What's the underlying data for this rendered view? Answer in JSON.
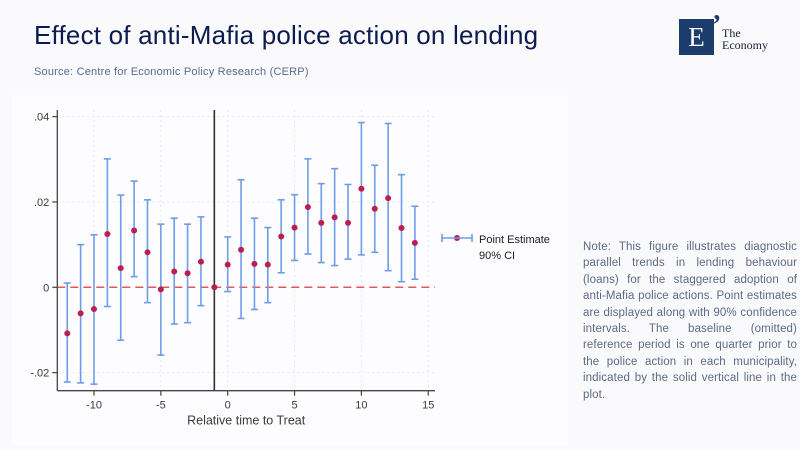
{
  "slide": {
    "title": "Effect of anti-Mafia police action on lending",
    "source": "Source: Centre for Economic Policy Research (CERP)",
    "note": "Note: This figure illustrates diagnostic parallel trends in lending behaviour (loans) for the staggered adoption of anti-Mafia police actions. Point estimates are displayed along with 90% confidence intervals. The baseline (omitted) reference period is one quarter prior to the police action in each municipality, indicated by the solid vertical line in the plot."
  },
  "logo": {
    "letter": "E",
    "mark": "’",
    "name_line1": "The",
    "name_line2": "Economy"
  },
  "colors": {
    "point": "#bb1f4f",
    "ci": "#6f9ce8",
    "zero_line": "#e25757",
    "ref_line": "#2f2f2f",
    "axis": "#444444",
    "grid": "#e6e8f2",
    "title": "#0d1c4e",
    "muted_text": "#5b6a82",
    "logo_box": "#1d3c6e"
  },
  "chart_data": {
    "type": "scatter",
    "subtype": "event-study point estimates with error bars",
    "title": "",
    "xlabel": "Relative time to Treat",
    "ylabel": "",
    "xlim": [
      -13,
      15.6
    ],
    "ylim": [
      -0.0245,
      0.0415
    ],
    "grid": true,
    "legend_position": "right-inside",
    "legend": [
      "Point Estimate",
      "90% CI"
    ],
    "reference_line_x": -1,
    "zero_line_y": 0,
    "x_ticks": [
      -10,
      -5,
      0,
      5,
      10,
      15
    ],
    "y_ticks": [
      {
        "v": 0.04,
        "label": ".04"
      },
      {
        "v": 0.02,
        "label": ".02"
      },
      {
        "v": 0,
        "label": "0"
      },
      {
        "v": -0.02,
        "label": "-.02"
      }
    ],
    "points": [
      {
        "t": -12,
        "est": -0.0108,
        "lo": -0.0222,
        "hi": 0.001
      },
      {
        "t": -11,
        "est": -0.0061,
        "lo": -0.0224,
        "hi": 0.01
      },
      {
        "t": -10,
        "est": -0.0051,
        "lo": -0.0227,
        "hi": 0.0123
      },
      {
        "t": -9,
        "est": 0.0125,
        "lo": -0.0045,
        "hi": 0.0301
      },
      {
        "t": -8,
        "est": 0.0045,
        "lo": -0.0124,
        "hi": 0.0216
      },
      {
        "t": -7,
        "est": 0.0133,
        "lo": 0.0025,
        "hi": 0.0249
      },
      {
        "t": -6,
        "est": 0.0082,
        "lo": -0.0036,
        "hi": 0.0205
      },
      {
        "t": -5,
        "est": -0.0005,
        "lo": -0.0159,
        "hi": 0.0148
      },
      {
        "t": -4,
        "est": 0.0037,
        "lo": -0.0086,
        "hi": 0.0162
      },
      {
        "t": -3,
        "est": 0.0033,
        "lo": -0.0083,
        "hi": 0.0148
      },
      {
        "t": -2,
        "est": 0.006,
        "lo": -0.0043,
        "hi": 0.0165
      },
      {
        "t": -1,
        "est": 0.0,
        "lo": null,
        "hi": null,
        "reference": true
      },
      {
        "t": 0,
        "est": 0.0053,
        "lo": -0.001,
        "hi": 0.0118
      },
      {
        "t": 1,
        "est": 0.0088,
        "lo": -0.0073,
        "hi": 0.0252
      },
      {
        "t": 2,
        "est": 0.0055,
        "lo": -0.0052,
        "hi": 0.0162
      },
      {
        "t": 3,
        "est": 0.0053,
        "lo": -0.0036,
        "hi": 0.014
      },
      {
        "t": 4,
        "est": 0.0119,
        "lo": 0.0034,
        "hi": 0.0205
      },
      {
        "t": 5,
        "est": 0.014,
        "lo": 0.0063,
        "hi": 0.0217
      },
      {
        "t": 6,
        "est": 0.0188,
        "lo": 0.0078,
        "hi": 0.0301
      },
      {
        "t": 7,
        "est": 0.0151,
        "lo": 0.0058,
        "hi": 0.0243
      },
      {
        "t": 8,
        "est": 0.0164,
        "lo": 0.0051,
        "hi": 0.0278
      },
      {
        "t": 9,
        "est": 0.0151,
        "lo": 0.0066,
        "hi": 0.0241
      },
      {
        "t": 10,
        "est": 0.0231,
        "lo": 0.0076,
        "hi": 0.0386
      },
      {
        "t": 11,
        "est": 0.0184,
        "lo": 0.0082,
        "hi": 0.0286
      },
      {
        "t": 12,
        "est": 0.0209,
        "lo": 0.0039,
        "hi": 0.0384
      },
      {
        "t": 13,
        "est": 0.0139,
        "lo": 0.0013,
        "hi": 0.0264
      },
      {
        "t": 14,
        "est": 0.0104,
        "lo": 0.0019,
        "hi": 0.019
      }
    ]
  }
}
